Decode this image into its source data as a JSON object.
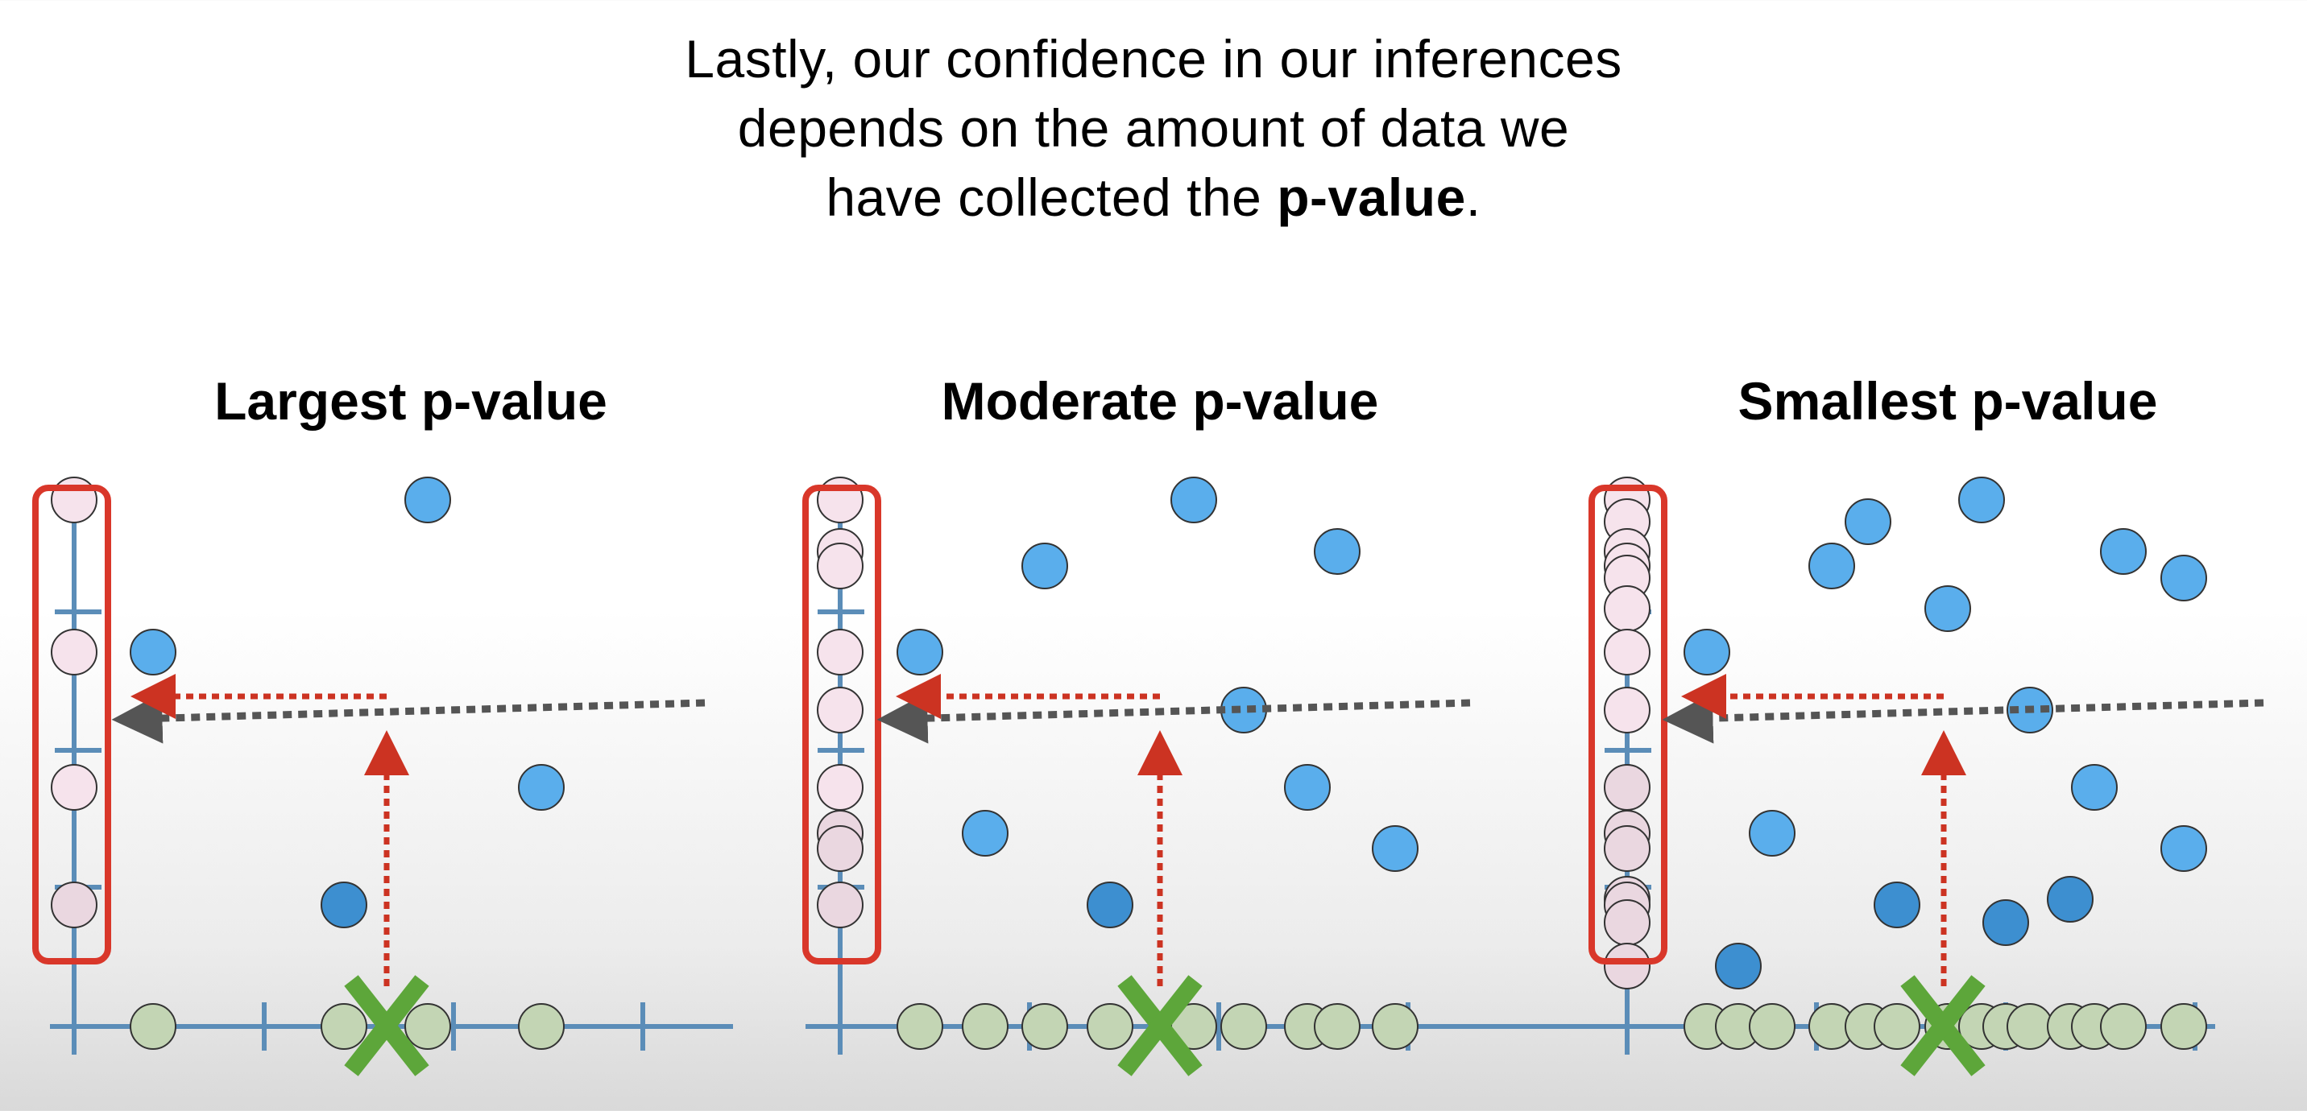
{
  "caption": {
    "line1": "Lastly, our confidence in our inferences",
    "line2": "depends on the amount of data we",
    "line3_prefix": "have collected the ",
    "line3_bold": "p-value",
    "line3_suffix": "."
  },
  "panels": [
    {
      "title": "Largest p-value"
    },
    {
      "title": "Moderate p-value"
    },
    {
      "title": "Smallest p-value"
    }
  ],
  "colors": {
    "axis": "#5b8db8",
    "axis_dark": "#2f6fa6",
    "blue_point": "#5aaeec",
    "blue_point_dark": "#3d8fd0",
    "pink_point": "#f6e3ec",
    "green_point": "#c3d5b4",
    "red_box": "#d9372a",
    "red_arrow": "#cc3322",
    "gray_arrow": "#555555",
    "green_x": "#5da63a"
  },
  "icons": {
    "mean_marker": "green-x-icon"
  }
}
